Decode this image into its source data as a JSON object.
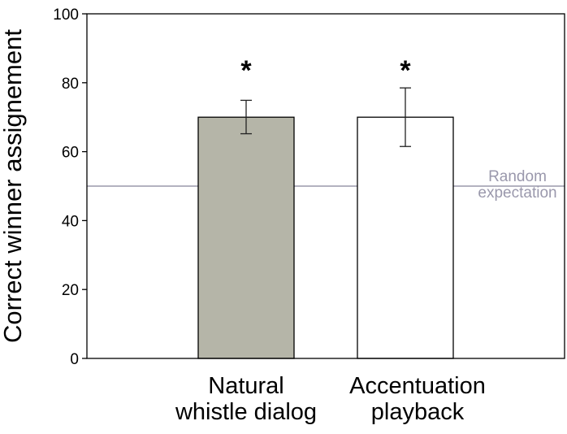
{
  "chart_data": {
    "type": "bar",
    "title": "",
    "xlabel": "",
    "ylabel": "Correct winner assignement",
    "ylim": [
      0,
      100
    ],
    "yticks": [
      "0",
      "20",
      "40",
      "60",
      "80",
      "100"
    ],
    "categories": [
      [
        "Natural",
        "whistle dialog"
      ],
      [
        "Accentuation",
        "playback"
      ]
    ],
    "values": [
      70,
      70
    ],
    "error_upper": [
      74.9,
      78.5
    ],
    "error_lower": [
      65.2,
      61.5
    ],
    "significance": [
      "*",
      "*"
    ],
    "bar_colors": [
      "#b5b5a8",
      "#ffffff"
    ],
    "reference_line": {
      "value": 50,
      "label": [
        "Random",
        "expectation"
      ],
      "color": "#9a98ac"
    },
    "grid": false
  }
}
